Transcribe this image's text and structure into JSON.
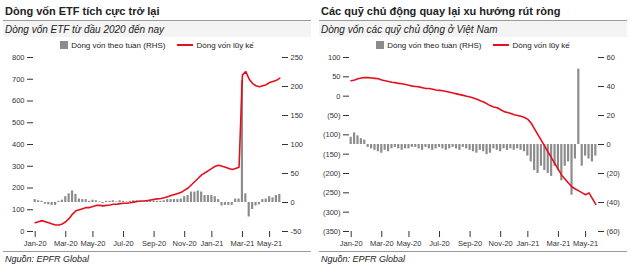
{
  "chart_data": [
    {
      "type": "bar",
      "title": "Dòng vốn ETF tích cực trở lại",
      "subtitle": "Dòng vốn ETF từ đầu 2020 đến nay",
      "source": "Nguồn: EPFR Global",
      "legend": "top",
      "grid": false,
      "categories": [
        "Jan-20",
        null,
        null,
        null,
        null,
        null,
        null,
        null,
        null,
        "Mar-20",
        null,
        null,
        null,
        null,
        null,
        null,
        null,
        "May-20",
        null,
        null,
        null,
        null,
        null,
        null,
        null,
        null,
        "Jul-20",
        null,
        null,
        null,
        null,
        null,
        null,
        null,
        null,
        "Sep-20",
        null,
        null,
        null,
        null,
        null,
        null,
        null,
        null,
        "Nov-20",
        null,
        null,
        null,
        null,
        null,
        null,
        null,
        "Jan-21",
        null,
        null,
        null,
        null,
        null,
        null,
        null,
        null,
        "Mar-21",
        null,
        null,
        null,
        null,
        null,
        null,
        null,
        "May-21",
        null,
        null,
        null
      ],
      "ylim": [
        0,
        800
      ],
      "yticks": [
        0,
        100,
        200,
        300,
        400,
        500,
        600,
        700,
        800
      ],
      "y2lim": [
        -50,
        250
      ],
      "y2ticks": [
        -50,
        0,
        50,
        100,
        150,
        200,
        250
      ],
      "series": [
        {
          "name": "Dòng vốn theo tuần (RHS)",
          "type": "bar",
          "axis": "y2",
          "color": "#8c8c8c",
          "values": [
            5,
            3,
            2,
            -3,
            -4,
            -5,
            -5,
            2,
            4,
            10,
            15,
            20,
            14,
            6,
            5,
            5,
            2,
            4,
            3,
            1,
            -2,
            2,
            2,
            3,
            1,
            3,
            2,
            1,
            2,
            3,
            3,
            2,
            1,
            2,
            3,
            3,
            2,
            2,
            3,
            5,
            5,
            5,
            5,
            6,
            10,
            12,
            18,
            18,
            20,
            18,
            12,
            12,
            12,
            10,
            5,
            -6,
            -5,
            -5,
            -5,
            6,
            6,
            210,
            15,
            -25,
            -12,
            -6,
            -4,
            5,
            6,
            10,
            8,
            12,
            14
          ]
        },
        {
          "name": "Dòng vốn lũy kế",
          "type": "line",
          "color": "#e3101e",
          "values": [
            40,
            45,
            50,
            45,
            40,
            35,
            30,
            30,
            35,
            45,
            60,
            80,
            95,
            100,
            105,
            110,
            110,
            115,
            120,
            120,
            118,
            120,
            122,
            125,
            125,
            128,
            130,
            130,
            132,
            135,
            138,
            140,
            140,
            142,
            145,
            148,
            150,
            152,
            155,
            160,
            165,
            170,
            175,
            180,
            190,
            200,
            215,
            230,
            245,
            260,
            270,
            280,
            290,
            300,
            305,
            300,
            295,
            290,
            285,
            290,
            295,
            720,
            735,
            700,
            680,
            670,
            665,
            670,
            675,
            685,
            690,
            695,
            705
          ]
        }
      ]
    },
    {
      "type": "bar",
      "title": "Các quỹ chủ động quay lại xu hướng rút ròng",
      "subtitle": "Dòng vốn các quỹ chủ động ở Việt Nam",
      "source": "Nguồn: EPFR Global",
      "legend": "top",
      "grid": false,
      "categories": [
        "Jan-20",
        null,
        null,
        null,
        null,
        null,
        null,
        null,
        null,
        "Mar-20",
        null,
        null,
        null,
        null,
        null,
        null,
        null,
        "May-20",
        null,
        null,
        null,
        null,
        null,
        null,
        null,
        null,
        "Jul-20",
        null,
        null,
        null,
        null,
        null,
        null,
        null,
        null,
        "Sep-20",
        null,
        null,
        null,
        null,
        null,
        null,
        null,
        null,
        "Nov-20",
        null,
        null,
        null,
        null,
        null,
        null,
        null,
        "Jan-21",
        null,
        null,
        null,
        null,
        null,
        null,
        null,
        null,
        "Mar-21",
        null,
        null,
        null,
        null,
        null,
        null,
        null,
        "May-21",
        null,
        null,
        null
      ],
      "ylim": [
        -350,
        100
      ],
      "yticks": [
        100,
        50,
        0,
        {
          "value": -50,
          "label": "(50)"
        },
        {
          "value": -100,
          "label": "(100)"
        },
        {
          "value": -150,
          "label": "(150)"
        },
        {
          "value": -200,
          "label": "(200)"
        },
        {
          "value": -250,
          "label": "(250)"
        },
        {
          "value": -300,
          "label": "(300)"
        },
        {
          "value": -350,
          "label": "(350)"
        }
      ],
      "y2lim": [
        -60,
        60
      ],
      "y2ticks": [
        60,
        40,
        20,
        0,
        {
          "value": -20,
          "label": "(20)"
        },
        {
          "value": -40,
          "label": "(40)"
        },
        {
          "value": -60,
          "label": "(60)"
        }
      ],
      "series": [
        {
          "name": "Dòng vốn theo tuần (RHS)",
          "type": "bar",
          "axis": "y2",
          "color": "#8c8c8c",
          "values": [
            5,
            8,
            6,
            4,
            3,
            -2,
            -3,
            -4,
            -5,
            -6,
            -4,
            -5,
            -3,
            -2,
            -3,
            -4,
            -3,
            -3,
            -2,
            -2,
            -3,
            -4,
            -2,
            -3,
            -4,
            -3,
            -2,
            -3,
            -4,
            -3,
            -2,
            -3,
            -4,
            -2,
            -3,
            -4,
            -5,
            -6,
            -4,
            -5,
            -7,
            -6,
            -3,
            -4,
            -5,
            -3,
            -4,
            -3,
            -4,
            -3,
            -4,
            -5,
            -8,
            -12,
            -18,
            -20,
            -15,
            -18,
            -20,
            -22,
            -15,
            -18,
            -25,
            -15,
            -12,
            -35,
            -10,
            52,
            -15,
            -8,
            -10,
            -12,
            -8
          ]
        },
        {
          "name": "Dòng vốn lũy kế",
          "type": "line",
          "color": "#e3101e",
          "values": [
            40,
            42,
            45,
            47,
            48,
            48,
            47,
            46,
            45,
            42,
            40,
            38,
            36,
            35,
            33,
            32,
            30,
            28,
            26,
            25,
            24,
            22,
            20,
            20,
            18,
            16,
            15,
            14,
            12,
            10,
            8,
            6,
            4,
            2,
            0,
            -2,
            -5,
            -8,
            -12,
            -15,
            -20,
            -25,
            -28,
            -30,
            -35,
            -40,
            -42,
            -45,
            -48,
            -50,
            -52,
            -55,
            -60,
            -70,
            -85,
            -100,
            -115,
            -130,
            -145,
            -160,
            -175,
            -190,
            -205,
            -215,
            -225,
            -235,
            -240,
            -245,
            -250,
            -255,
            -250,
            -265,
            -280
          ]
        }
      ]
    }
  ]
}
